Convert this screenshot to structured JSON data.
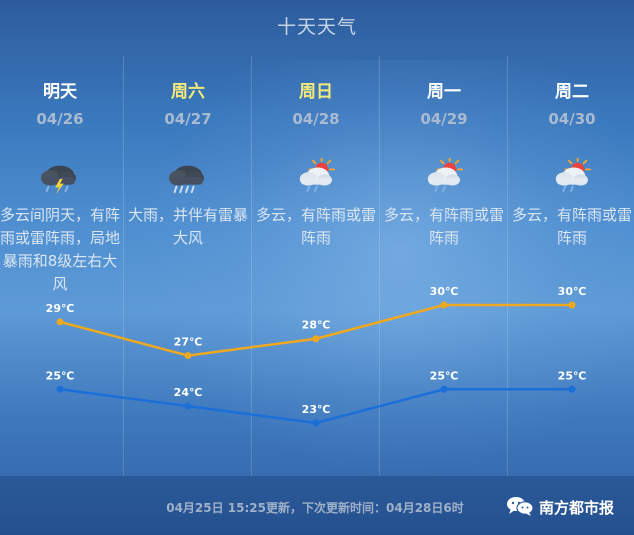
{
  "title": "十天天气",
  "days": [
    {
      "name": "明天",
      "date": "04/26",
      "weekend": false,
      "icon": "thunderstorm-icon",
      "desc": "多云间阴天，有阵雨或雷阵雨，局地暴雨和8级左右大风"
    },
    {
      "name": "周六",
      "date": "04/27",
      "weekend": true,
      "icon": "heavy-rain-icon",
      "desc": "大雨，并伴有雷暴大风"
    },
    {
      "name": "周日",
      "date": "04/28",
      "weekend": true,
      "icon": "sun-cloud-rain-icon",
      "desc": "多云，有阵雨或雷阵雨"
    },
    {
      "name": "周一",
      "date": "04/29",
      "weekend": false,
      "icon": "sun-cloud-rain-icon",
      "desc": "多云，有阵雨或雷阵雨"
    },
    {
      "name": "周二",
      "date": "04/30",
      "weekend": false,
      "icon": "sun-cloud-rain-icon",
      "desc": "多云，有阵雨或雷阵雨"
    }
  ],
  "chart_data": {
    "type": "line",
    "categories": [
      "04/26",
      "04/27",
      "04/28",
      "04/29",
      "04/30"
    ],
    "unit": "℃",
    "series": [
      {
        "values": [
          29,
          27,
          28,
          30,
          30
        ],
        "color": "#f0a81f"
      },
      {
        "values": [
          25,
          24,
          23,
          25,
          25
        ],
        "color": "#1a6fd8"
      }
    ],
    "ylim": [
      22,
      31
    ]
  },
  "footer": {
    "update_note": "04月25日 15:25更新，下次更新时间：04月28日6时",
    "brand": "南方都市报"
  },
  "colors": {
    "high_line": "#f0a81f",
    "low_line": "#1a6fd8",
    "weekend_day": "#f3ea7a"
  }
}
